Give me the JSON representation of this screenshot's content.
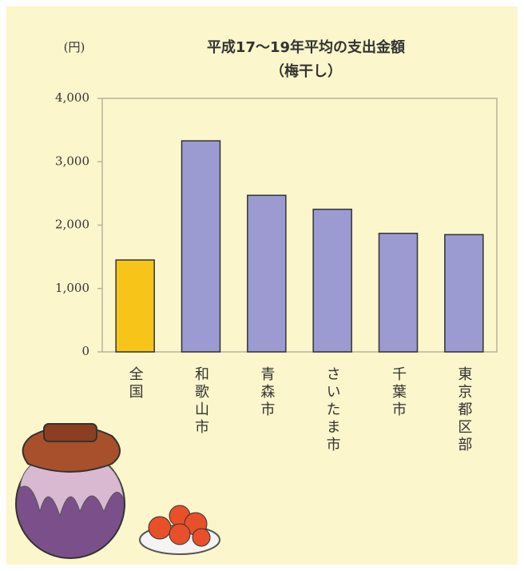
{
  "chart_data": {
    "type": "bar",
    "title": "平成17～19年平均の支出金額",
    "subtitle": "（梅干し）",
    "y_label": "(円)",
    "categories": [
      "全国",
      "和歌山市",
      "青森市",
      "さいたま市",
      "千葉市",
      "東京都区部"
    ],
    "values": [
      1450,
      3330,
      2470,
      2250,
      1870,
      1850
    ],
    "colors": [
      "#f7c51a",
      "#9b9bd2",
      "#9b9bd2",
      "#9b9bd2",
      "#9b9bd2",
      "#9b9bd2"
    ],
    "ylim": [
      0,
      4000
    ],
    "yticks": [
      0,
      {
        "value": 1000,
        "label": "1,000"
      },
      {
        "value": 2000,
        "label": "2,000"
      },
      {
        "value": 3000,
        "label": "3,000"
      },
      {
        "value": 4000,
        "label": "4,000"
      }
    ],
    "grid": false
  }
}
